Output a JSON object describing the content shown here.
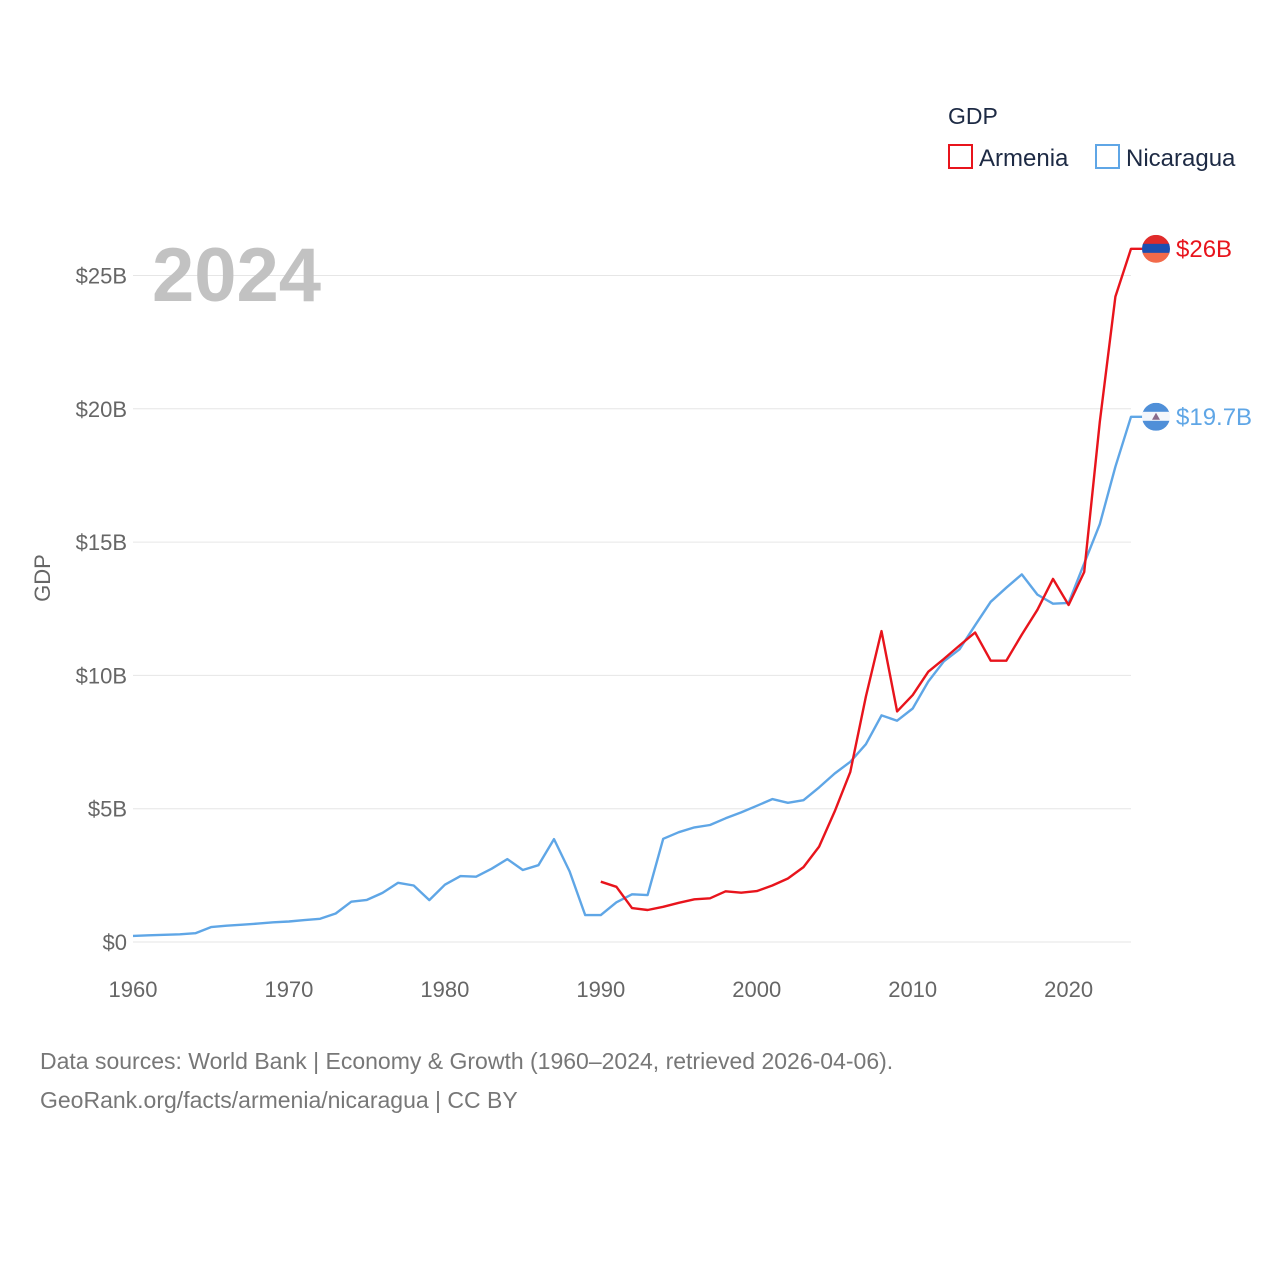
{
  "chart_data": {
    "type": "line",
    "ylabel": "GDP",
    "big_year": "2024",
    "legend": {
      "title": "GDP",
      "entries": [
        "Armenia",
        "Nicaragua"
      ]
    },
    "xlim": [
      1960,
      2024
    ],
    "ylim": [
      0,
      28
    ],
    "x_ticks": [
      {
        "value": 1960,
        "label": "1960"
      },
      {
        "value": 1970,
        "label": "1970"
      },
      {
        "value": 1980,
        "label": "1980"
      },
      {
        "value": 1990,
        "label": "1990"
      },
      {
        "value": 2000,
        "label": "2000"
      },
      {
        "value": 2010,
        "label": "2010"
      },
      {
        "value": 2020,
        "label": "2020"
      }
    ],
    "y_ticks": [
      {
        "value": 0,
        "label": "$0"
      },
      {
        "value": 5,
        "label": "$5B"
      },
      {
        "value": 10,
        "label": "$10B"
      },
      {
        "value": 15,
        "label": "$15B"
      },
      {
        "value": 20,
        "label": "$20B"
      },
      {
        "value": 25,
        "label": "$25B"
      }
    ],
    "series": [
      {
        "name": "Armenia",
        "color": "#e8141c",
        "end_label": "$26B",
        "end_value": 26.0,
        "x": [
          1990,
          1991,
          1992,
          1993,
          1994,
          1995,
          1996,
          1997,
          1998,
          1999,
          2000,
          2001,
          2002,
          2003,
          2004,
          2005,
          2006,
          2007,
          2008,
          2009,
          2010,
          2011,
          2012,
          2013,
          2014,
          2015,
          2016,
          2017,
          2018,
          2019,
          2020,
          2021,
          2022,
          2023,
          2024
        ],
        "values": [
          2.26,
          2.07,
          1.27,
          1.2,
          1.32,
          1.47,
          1.6,
          1.64,
          1.9,
          1.85,
          1.91,
          2.12,
          2.38,
          2.81,
          3.58,
          4.9,
          6.38,
          9.21,
          11.66,
          8.65,
          9.26,
          10.14,
          10.62,
          11.12,
          11.61,
          10.55,
          10.55,
          11.53,
          12.46,
          13.62,
          12.64,
          13.88,
          19.51,
          24.21,
          26.0
        ]
      },
      {
        "name": "Nicaragua",
        "color": "#5fa6e6",
        "end_label": "$19.7B",
        "end_value": 19.7,
        "x": [
          1960,
          1961,
          1962,
          1963,
          1964,
          1965,
          1966,
          1967,
          1968,
          1969,
          1970,
          1971,
          1972,
          1973,
          1974,
          1975,
          1976,
          1977,
          1978,
          1979,
          1980,
          1981,
          1982,
          1983,
          1984,
          1985,
          1986,
          1987,
          1988,
          1989,
          1990,
          1991,
          1992,
          1993,
          1994,
          1995,
          1996,
          1997,
          1998,
          1999,
          2000,
          2001,
          2002,
          2003,
          2004,
          2005,
          2006,
          2007,
          2008,
          2009,
          2010,
          2011,
          2012,
          2013,
          2014,
          2015,
          2016,
          2017,
          2018,
          2019,
          2020,
          2021,
          2022,
          2023,
          2024
        ],
        "values": [
          0.23,
          0.25,
          0.27,
          0.29,
          0.33,
          0.56,
          0.61,
          0.65,
          0.69,
          0.74,
          0.77,
          0.82,
          0.87,
          1.07,
          1.51,
          1.58,
          1.84,
          2.22,
          2.12,
          1.57,
          2.15,
          2.47,
          2.45,
          2.75,
          3.11,
          2.7,
          2.88,
          3.86,
          2.65,
          1.01,
          1.01,
          1.49,
          1.79,
          1.76,
          3.87,
          4.12,
          4.3,
          4.39,
          4.64,
          4.86,
          5.11,
          5.36,
          5.22,
          5.32,
          5.8,
          6.32,
          6.76,
          7.42,
          8.5,
          8.3,
          8.76,
          9.77,
          10.53,
          10.98,
          11.88,
          12.76,
          13.29,
          13.79,
          13.03,
          12.69,
          12.72,
          14.2,
          15.67,
          17.83,
          19.7
        ]
      }
    ],
    "source_lines": [
      "Data sources: World Bank | Economy & Growth (1960–2024, retrieved 2026-04-06).",
      "GeoRank.org/facts/armenia/nicaragua | CC BY"
    ]
  }
}
